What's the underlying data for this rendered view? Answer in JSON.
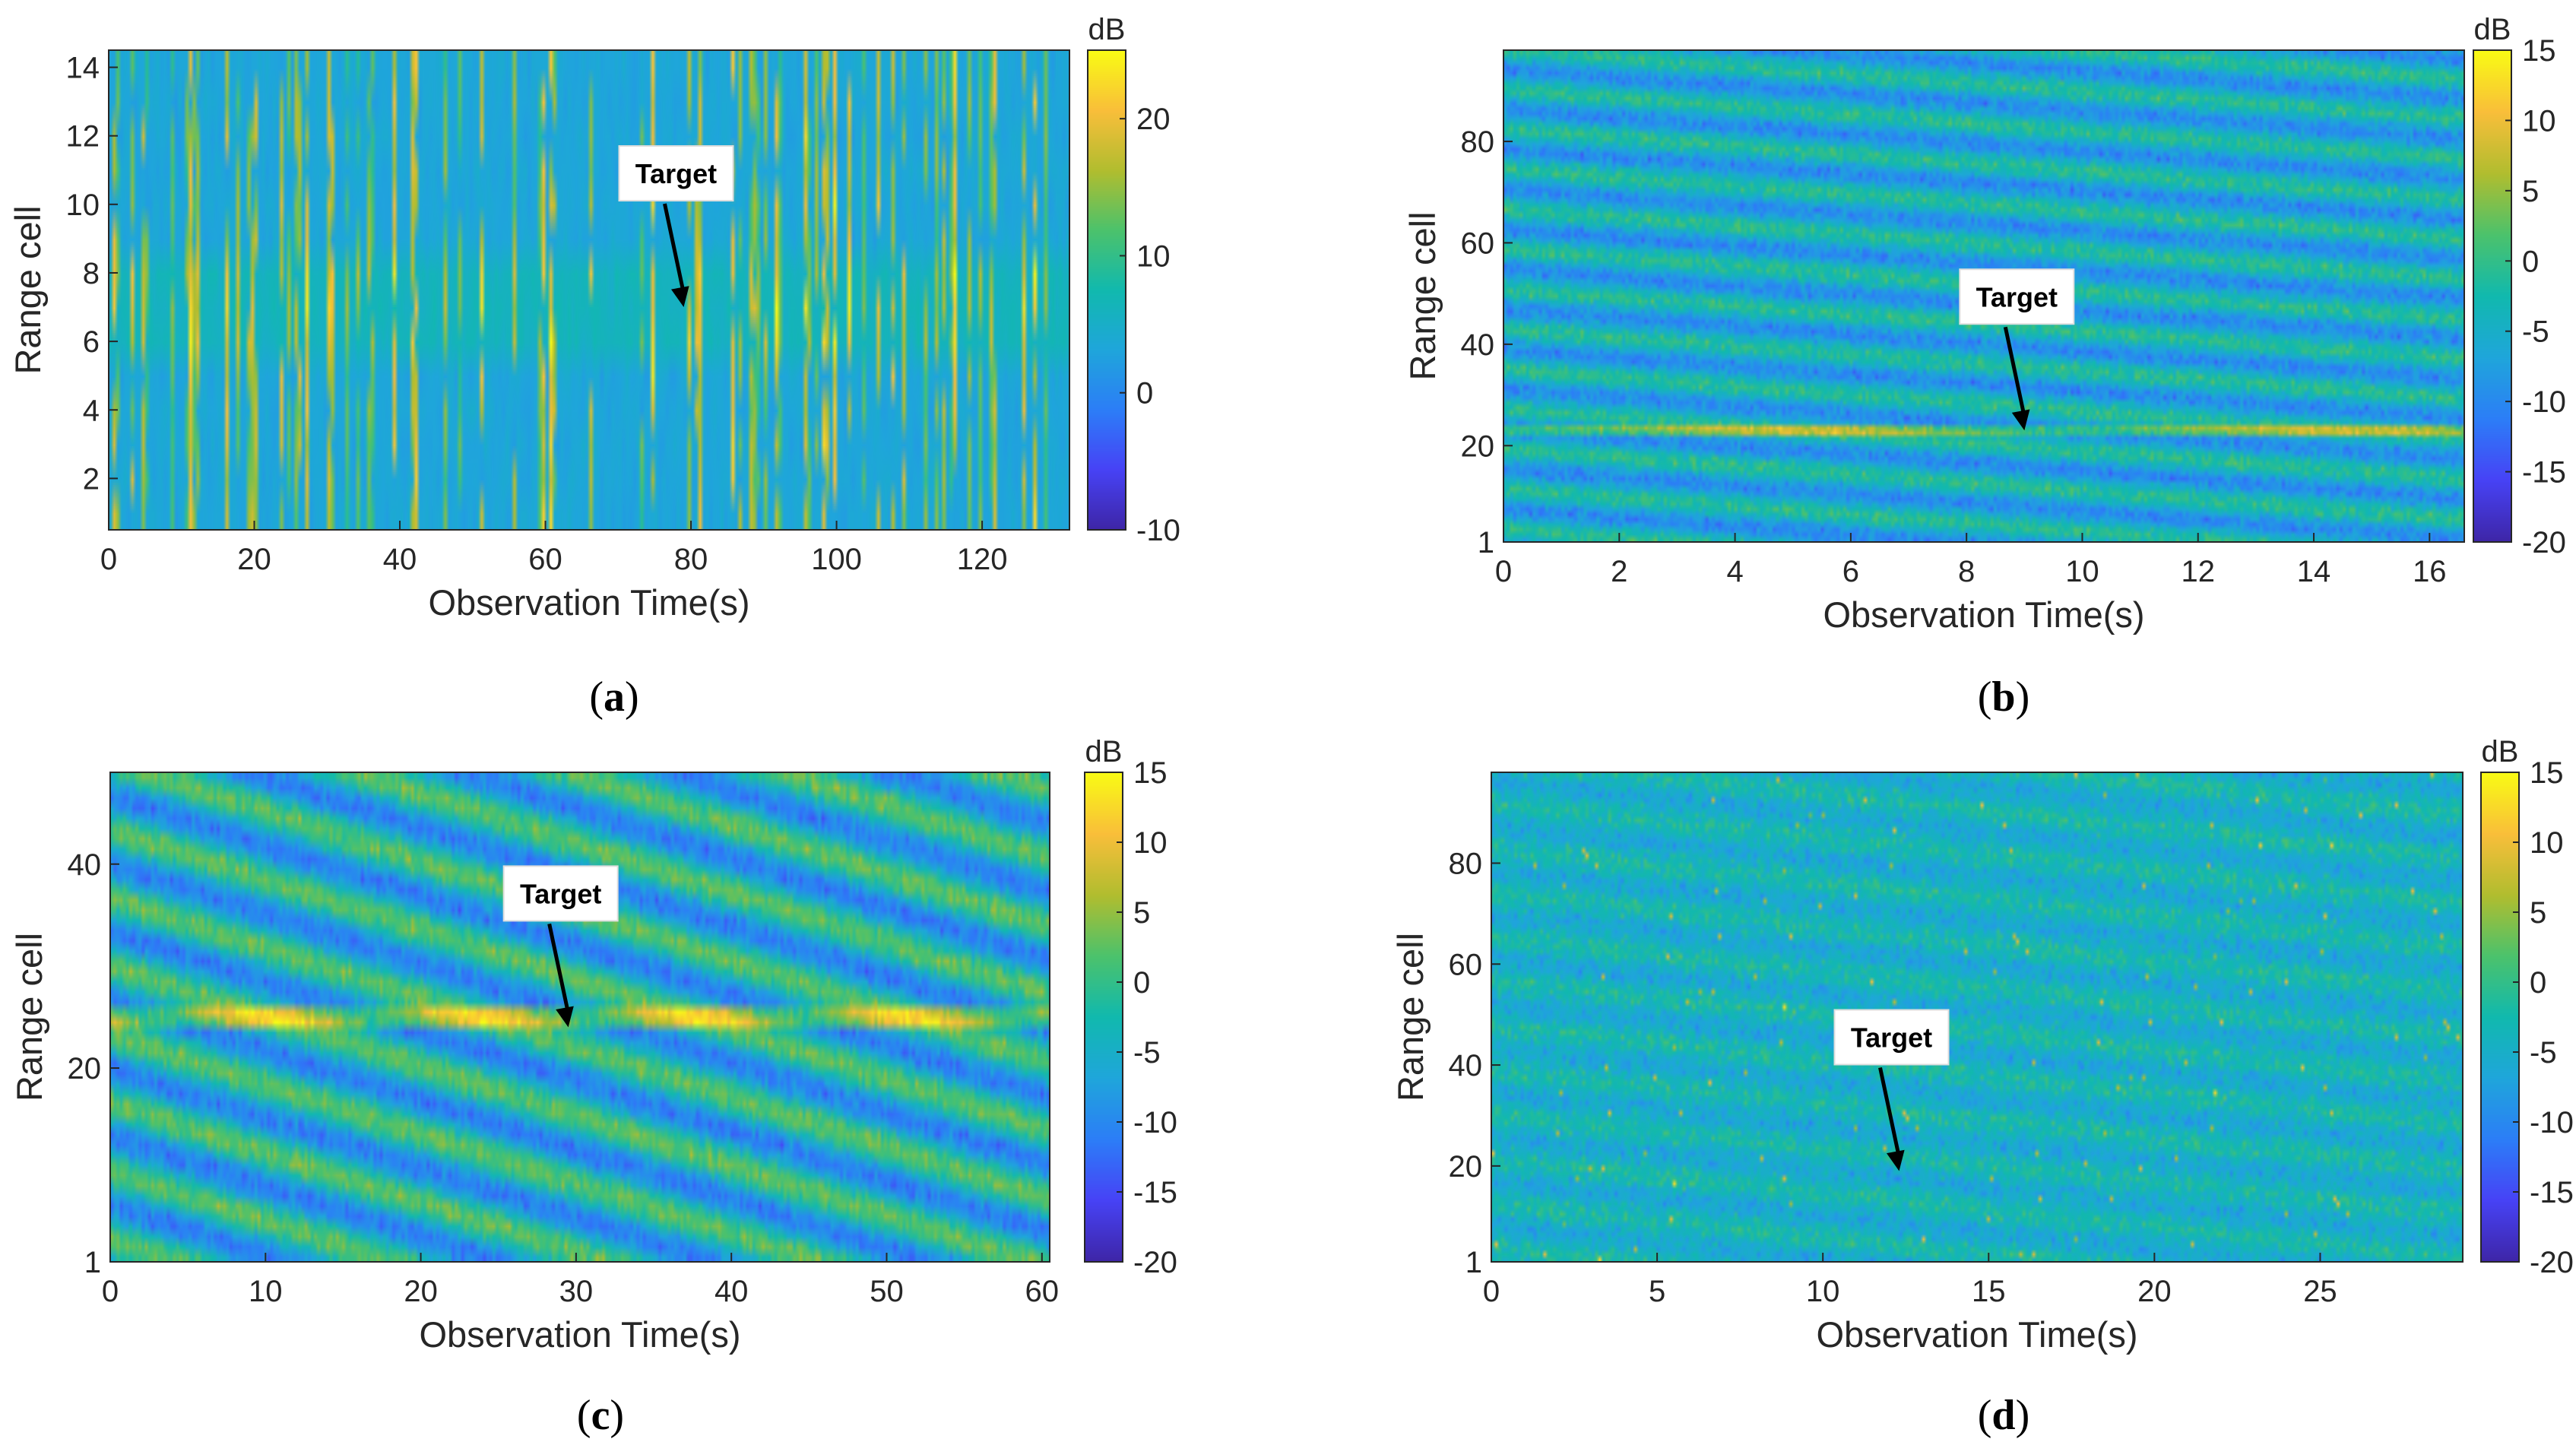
{
  "figure": {
    "colormap": "parula",
    "colormap_stops": [
      "#3e26a8",
      "#4743f6",
      "#2c7ef7",
      "#1fa6db",
      "#11b9ae",
      "#4cc26c",
      "#b1bd2f",
      "#f9be3a",
      "#f9fb15"
    ]
  },
  "chart_data": [
    {
      "type": "heatmap",
      "panel": "a",
      "caption_letter": "a",
      "xlabel": "Observation Time(s)",
      "ylabel": "Range cell",
      "xlim": [
        0,
        132
      ],
      "ylim": [
        0.5,
        14.5
      ],
      "xticks": [
        0,
        20,
        40,
        60,
        80,
        100,
        120
      ],
      "yticks": [
        2,
        4,
        6,
        8,
        10,
        12,
        14
      ],
      "colorbar": {
        "unit": "dB",
        "range": [
          -10,
          25
        ],
        "ticks": [
          -10,
          0,
          10,
          20
        ]
      },
      "annotation": {
        "text": "Target",
        "x": 79,
        "y": 7
      },
      "target_cell": 7,
      "pattern": "vertical spikes with elevated band around cells 6-8"
    },
    {
      "type": "heatmap",
      "panel": "b",
      "caption_letter": "b",
      "xlabel": "Observation Time(s)",
      "ylabel": "Range cell",
      "xlim": [
        0,
        16.6
      ],
      "ylim": [
        1,
        98
      ],
      "xticks": [
        0,
        2,
        4,
        6,
        8,
        10,
        12,
        14,
        16
      ],
      "yticks": [
        1,
        20,
        40,
        60,
        80
      ],
      "colorbar": {
        "unit": "dB",
        "range": [
          -20,
          15
        ],
        "ticks": [
          -20,
          -15,
          -10,
          -5,
          0,
          5,
          10,
          15
        ]
      },
      "annotation": {
        "text": "Target",
        "x": 9,
        "y": 23
      },
      "target_cell": 23,
      "pattern": "shallow diagonal sea-clutter stripes"
    },
    {
      "type": "heatmap",
      "panel": "c",
      "caption_letter": "c",
      "xlabel": "Observation Time(s)",
      "ylabel": "Range cell",
      "xlim": [
        0,
        60.5
      ],
      "ylim": [
        1,
        49
      ],
      "xticks": [
        0,
        10,
        20,
        30,
        40,
        50,
        60
      ],
      "yticks": [
        1,
        20,
        40
      ],
      "colorbar": {
        "unit": "dB",
        "range": [
          -20,
          15
        ],
        "ticks": [
          -20,
          -15,
          -10,
          -5,
          0,
          5,
          10,
          15
        ]
      },
      "annotation": {
        "text": "Target",
        "x": 29.5,
        "y": 24
      },
      "target_cell": 25,
      "pattern": "steep diagonal sea-clutter stripes"
    },
    {
      "type": "heatmap",
      "panel": "d",
      "caption_letter": "d",
      "xlabel": "Observation Time(s)",
      "ylabel": "Range cell",
      "xlim": [
        0,
        29.3
      ],
      "ylim": [
        1,
        98
      ],
      "xticks": [
        0,
        5,
        10,
        15,
        20,
        25
      ],
      "yticks": [
        1,
        20,
        40,
        60,
        80
      ],
      "colorbar": {
        "unit": "dB",
        "range": [
          -20,
          15
        ],
        "ticks": [
          -20,
          -15,
          -10,
          -5,
          0,
          5,
          10,
          15
        ]
      },
      "annotation": {
        "text": "Target",
        "x": 12.3,
        "y": 19
      },
      "target_cell": 19,
      "pattern": "faint diagonal sea-clutter stripes with high noise"
    }
  ]
}
